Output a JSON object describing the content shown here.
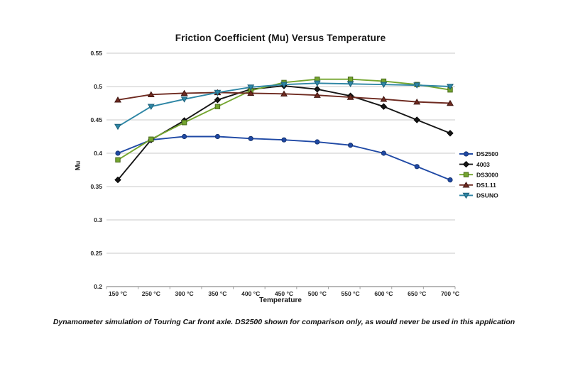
{
  "chart_data": {
    "type": "line",
    "title": "Friction Coefficient (Mu) Versus Temperature",
    "xlabel": "Temperature",
    "ylabel": "Mu",
    "caption": "Dynamometer simulation of Touring Car front axle. DS2500 shown for comparison only, as would never be used in this application",
    "categories": [
      "150 °C",
      "250 °C",
      "300 °C",
      "350 °C",
      "400 °C",
      "450 °C",
      "500 °C",
      "550 °C",
      "600 °C",
      "650 °C",
      "700 °C"
    ],
    "ylim": [
      0.2,
      0.55
    ],
    "y_tick_step": 0.05,
    "y_tick_labels": [
      "0.2",
      "0.25",
      "0.3",
      "0.35",
      "0.4",
      "0.45",
      "0.5",
      "0.55"
    ],
    "grid": "horizontal",
    "gridline_color": "#C9C9C9",
    "axis_color": "#A0A0A0",
    "tick_text_color": "#262626",
    "legend_position": "right",
    "series": [
      {
        "name": "DS2500",
        "marker": "circle",
        "color": "#1F49A5",
        "marker_stroke": "#16336F",
        "values": [
          0.4,
          0.42,
          0.425,
          0.425,
          0.422,
          0.42,
          0.417,
          0.412,
          0.4,
          0.38,
          0.36
        ]
      },
      {
        "name": "4003",
        "marker": "diamond",
        "color": "#161616",
        "marker_stroke": "#000000",
        "values": [
          0.36,
          0.42,
          0.449,
          0.48,
          0.496,
          0.501,
          0.496,
          0.486,
          0.47,
          0.45,
          0.43
        ]
      },
      {
        "name": "DS3000",
        "marker": "square",
        "color": "#74A52F",
        "marker_stroke": "#48691B",
        "values": [
          0.39,
          0.421,
          0.446,
          0.47,
          0.494,
          0.506,
          0.511,
          0.511,
          0.508,
          0.503,
          0.495
        ]
      },
      {
        "name": "DS1.11",
        "marker": "triangle-up",
        "color": "#6E2A20",
        "marker_stroke": "#3F1510",
        "values": [
          0.48,
          0.488,
          0.49,
          0.491,
          0.49,
          0.489,
          0.487,
          0.484,
          0.481,
          0.477,
          0.475
        ]
      },
      {
        "name": "DSUNO",
        "marker": "triangle-down",
        "color": "#2E86A5",
        "marker_stroke": "#1C5F78",
        "values": [
          0.44,
          0.47,
          0.481,
          0.491,
          0.499,
          0.503,
          0.505,
          0.504,
          0.503,
          0.502,
          0.5
        ]
      }
    ]
  }
}
